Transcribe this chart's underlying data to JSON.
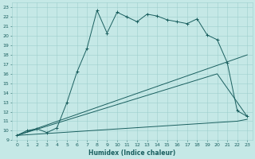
{
  "xlabel": "Humidex (Indice chaleur)",
  "bg_color": "#c5e8e6",
  "grid_color": "#9ecfcd",
  "line_color": "#1a5f5f",
  "xlim": [
    -0.5,
    23.5
  ],
  "ylim": [
    9,
    23.5
  ],
  "yticks": [
    9,
    10,
    11,
    12,
    13,
    14,
    15,
    16,
    17,
    18,
    19,
    20,
    21,
    22,
    23
  ],
  "xticks": [
    0,
    1,
    2,
    3,
    4,
    5,
    6,
    7,
    8,
    9,
    10,
    11,
    12,
    13,
    14,
    15,
    16,
    17,
    18,
    19,
    20,
    21,
    22,
    23
  ],
  "line1_x": [
    0,
    1,
    2,
    3,
    4,
    5,
    6,
    7,
    8,
    9,
    10,
    11,
    12,
    13,
    14,
    15,
    16,
    17,
    18,
    19,
    20,
    21,
    22,
    23
  ],
  "line1_y": [
    9.5,
    10.0,
    10.2,
    9.8,
    10.3,
    13.0,
    16.2,
    18.7,
    22.7,
    20.3,
    22.5,
    22.0,
    21.5,
    22.3,
    22.1,
    21.7,
    21.5,
    21.3,
    21.8,
    20.1,
    19.6,
    17.2,
    12.1,
    11.5
  ],
  "line2_x": [
    0,
    23
  ],
  "line2_y": [
    9.5,
    18.0
  ],
  "line3_x": [
    0,
    20,
    23
  ],
  "line3_y": [
    9.5,
    16.0,
    11.5
  ],
  "line4_x": [
    0,
    22,
    23
  ],
  "line4_y": [
    9.5,
    11.0,
    11.2
  ],
  "tick_fontsize": 4.5,
  "xlabel_fontsize": 5.5
}
